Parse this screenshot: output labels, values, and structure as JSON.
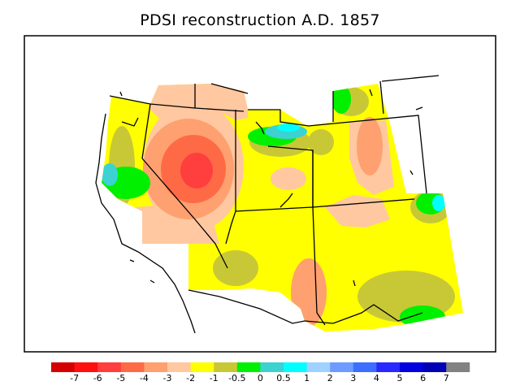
{
  "title": "PDSI reconstruction A.D. 1857",
  "legend": {
    "colors": [
      "#d40000",
      "#ff0f0f",
      "#ff3e3e",
      "#ff6a46",
      "#ffa070",
      "#ffc8a0",
      "#ffff00",
      "#c8c836",
      "#00f000",
      "#3cd2d2",
      "#00ffff",
      "#a0d2ff",
      "#6e9bff",
      "#3c6eff",
      "#2828ff",
      "#0000e0",
      "#0000b4",
      "#828282"
    ],
    "labels": [
      "-7",
      "-6",
      "-5",
      "-4",
      "-3",
      "-2",
      "-1",
      "-0.5",
      "0",
      "0.5",
      "1",
      "2",
      "3",
      "4",
      "5",
      "6",
      "7"
    ]
  },
  "colors": {
    "dry_severe": "#ff3e3e",
    "dry_moderate": "#ff6a46",
    "dry_mild": "#ffa070",
    "dry_slight": "#ffc8a0",
    "near_normal": "#ffff00",
    "incipient_wet": "#c8c836",
    "wet_mild": "#00f000",
    "wet_moderate": "#3cd2d2",
    "wet_high": "#00ffff"
  }
}
